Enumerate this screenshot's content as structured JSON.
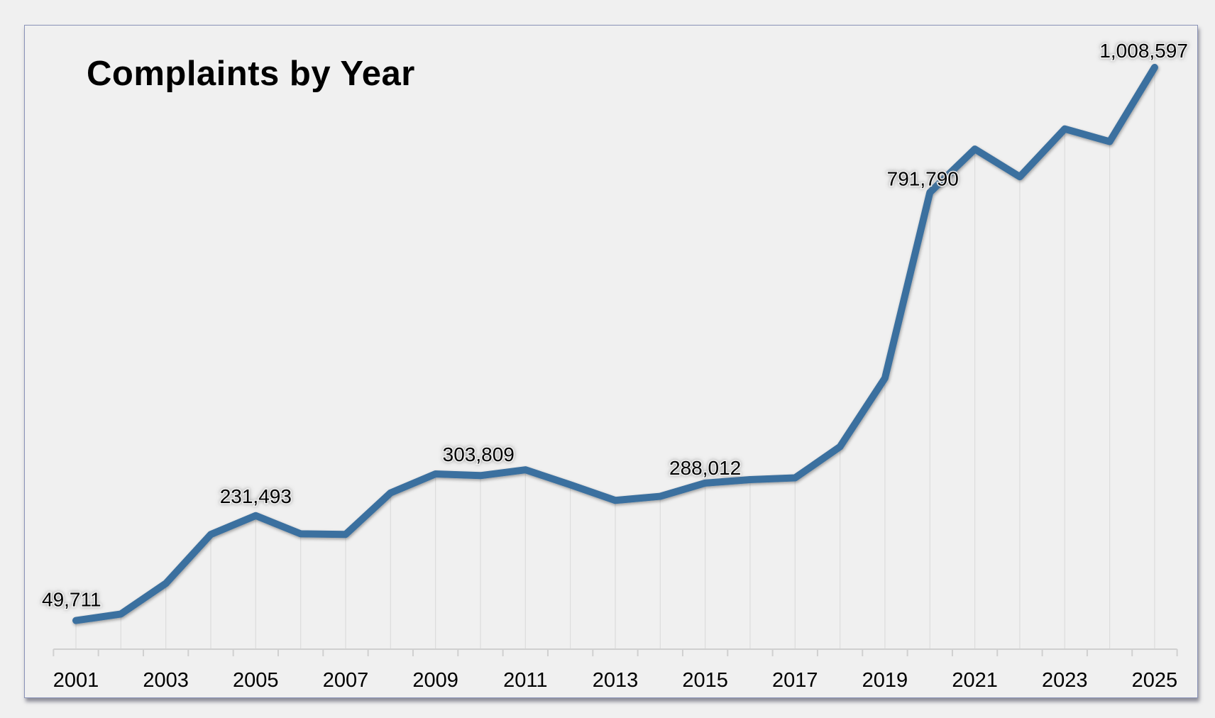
{
  "chart_data": {
    "type": "line",
    "title": "Complaints by Year",
    "xlabel": "",
    "ylabel": "",
    "x": [
      2001,
      2002,
      2003,
      2004,
      2005,
      2006,
      2007,
      2008,
      2009,
      2010,
      2011,
      2012,
      2013,
      2014,
      2015,
      2016,
      2017,
      2018,
      2019,
      2020,
      2021,
      2022,
      2023,
      2024,
      2025
    ],
    "values": [
      49711,
      61000,
      114000,
      199000,
      231493,
      200000,
      199000,
      271000,
      303809,
      301000,
      311000,
      285000,
      258000,
      265000,
      288012,
      294000,
      297000,
      351000,
      470000,
      791790,
      867000,
      819000,
      902000,
      880000,
      1008597
    ],
    "data_labels": [
      {
        "x": 2001,
        "text": "49,711"
      },
      {
        "x": 2005,
        "text": "231,493"
      },
      {
        "x": 2009,
        "text": "303,809"
      },
      {
        "x": 2015,
        "text": "288,012"
      },
      {
        "x": 2020,
        "text": "791,790"
      },
      {
        "x": 2025,
        "text": "1,008,597"
      }
    ],
    "tick_labels": [
      "2001",
      "2003",
      "2005",
      "2007",
      "2009",
      "2011",
      "2013",
      "2015",
      "2017",
      "2019",
      "2021",
      "2023",
      "2025"
    ],
    "ylim": [
      0,
      1008597
    ],
    "grid": "vertical",
    "legend": "none",
    "colors": {
      "line": "#3b6f9f",
      "grid": "#dcdcdc",
      "axis": "#d0d0d0"
    }
  }
}
